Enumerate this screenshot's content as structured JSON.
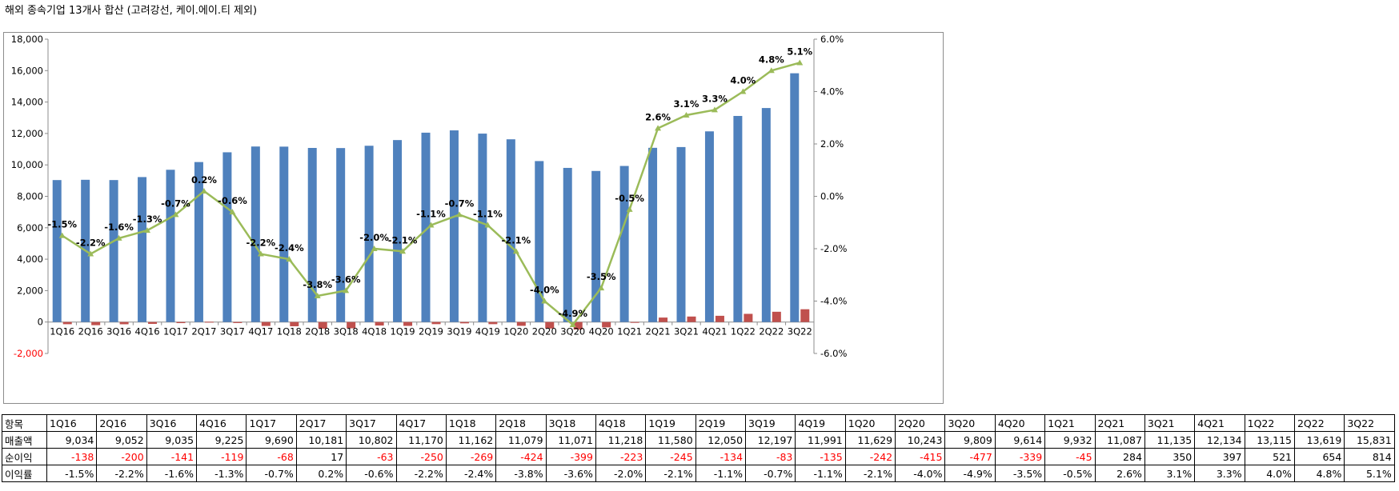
{
  "title": "해외 종속기업 13개사 합산 (고려강선, 케이.에이.티 제외)",
  "chart_data": {
    "type": "bar",
    "categories": [
      "1Q16",
      "2Q16",
      "3Q16",
      "4Q16",
      "1Q17",
      "2Q17",
      "3Q17",
      "4Q17",
      "1Q18",
      "2Q18",
      "3Q18",
      "4Q18",
      "1Q19",
      "2Q19",
      "3Q19",
      "4Q19",
      "1Q20",
      "2Q20",
      "3Q20",
      "4Q20",
      "1Q21",
      "2Q21",
      "3Q21",
      "4Q21",
      "1Q22",
      "2Q22",
      "3Q22"
    ],
    "series": [
      {
        "name": "매출액",
        "type": "bar",
        "axis": "left",
        "color": "#4f81bd",
        "values": [
          9034,
          9052,
          9035,
          9225,
          9690,
          10181,
          10802,
          11170,
          11162,
          11079,
          11071,
          11218,
          11580,
          12050,
          12197,
          11991,
          11629,
          10243,
          9809,
          9614,
          9932,
          11087,
          11135,
          12134,
          13115,
          13619,
          15831
        ]
      },
      {
        "name": "순이익",
        "type": "bar",
        "axis": "left",
        "color": "#c0504d",
        "values": [
          -138,
          -200,
          -141,
          -119,
          -68,
          17,
          -63,
          -250,
          -269,
          -424,
          -399,
          -223,
          -245,
          -134,
          -83,
          -135,
          -242,
          -415,
          -477,
          -339,
          -45,
          284,
          350,
          397,
          521,
          654,
          814
        ]
      },
      {
        "name": "이익률",
        "type": "line",
        "axis": "right",
        "color": "#9bbb59",
        "values": [
          -1.5,
          -2.2,
          -1.6,
          -1.3,
          -0.7,
          0.2,
          -0.6,
          -2.2,
          -2.4,
          -3.8,
          -3.6,
          -2.0,
          -2.1,
          -1.1,
          -0.7,
          -1.1,
          -2.1,
          -4.0,
          -4.9,
          -3.5,
          -0.5,
          2.6,
          3.1,
          3.3,
          4.0,
          4.8,
          5.1
        ],
        "labels": [
          "-1.5%",
          "-2.2%",
          "-1.6%",
          "-1.3%",
          "-0.7%",
          "0.2%",
          "-0.6%",
          "-2.2%",
          "-2.4%",
          "-3.8%",
          "-3.6%",
          "-2.0%",
          "-2.1%",
          "-1.1%",
          "-0.7%",
          "-1.1%",
          "-2.1%",
          "-4.0%",
          "-4.9%",
          "-3.5%",
          "-0.5%",
          "2.6%",
          "3.1%",
          "3.3%",
          "4.0%",
          "4.8%",
          "5.1%"
        ]
      }
    ],
    "ylim_left": [
      -2000,
      18000
    ],
    "yticks_left": [
      "-2,000",
      "0",
      "2,000",
      "4,000",
      "6,000",
      "8,000",
      "10,000",
      "12,000",
      "14,000",
      "16,000",
      "18,000"
    ],
    "ylim_right": [
      -6.0,
      6.0
    ],
    "yticks_right": [
      "-6.0%",
      "-4.0%",
      "-2.0%",
      "0.0%",
      "2.0%",
      "4.0%",
      "6.0%"
    ],
    "grid": false,
    "legend": "none"
  },
  "table": {
    "header": [
      "항목",
      "1Q16",
      "2Q16",
      "3Q16",
      "4Q16",
      "1Q17",
      "2Q17",
      "3Q17",
      "4Q17",
      "1Q18",
      "2Q18",
      "3Q18",
      "4Q18",
      "1Q19",
      "2Q19",
      "3Q19",
      "4Q19",
      "1Q20",
      "2Q20",
      "3Q20",
      "4Q20",
      "1Q21",
      "2Q21",
      "3Q21",
      "4Q21",
      "1Q22",
      "2Q22",
      "3Q22"
    ],
    "rows": [
      {
        "label": "매출액",
        "cells": [
          "9,034",
          "9,052",
          "9,035",
          "9,225",
          "9,690",
          "10,181",
          "10,802",
          "11,170",
          "11,162",
          "11,079",
          "11,071",
          "11,218",
          "11,580",
          "12,050",
          "12,197",
          "11,991",
          "11,629",
          "10,243",
          "9,809",
          "9,614",
          "9,932",
          "11,087",
          "11,135",
          "12,134",
          "13,115",
          "13,619",
          "15,831"
        ]
      },
      {
        "label": "순이익",
        "cells": [
          "-138",
          "-200",
          "-141",
          "-119",
          "-68",
          "17",
          "-63",
          "-250",
          "-269",
          "-424",
          "-399",
          "-223",
          "-245",
          "-134",
          "-83",
          "-135",
          "-242",
          "-415",
          "-477",
          "-339",
          "-45",
          "284",
          "350",
          "397",
          "521",
          "654",
          "814"
        ]
      },
      {
        "label": "이익률",
        "cells": [
          "-1.5%",
          "-2.2%",
          "-1.6%",
          "-1.3%",
          "-0.7%",
          "0.2%",
          "-0.6%",
          "-2.2%",
          "-2.4%",
          "-3.8%",
          "-3.6%",
          "-2.0%",
          "-2.1%",
          "-1.1%",
          "-0.7%",
          "-1.1%",
          "-2.1%",
          "-4.0%",
          "-4.9%",
          "-3.5%",
          "-0.5%",
          "2.6%",
          "3.1%",
          "3.3%",
          "4.0%",
          "4.8%",
          "5.1%"
        ]
      }
    ]
  }
}
